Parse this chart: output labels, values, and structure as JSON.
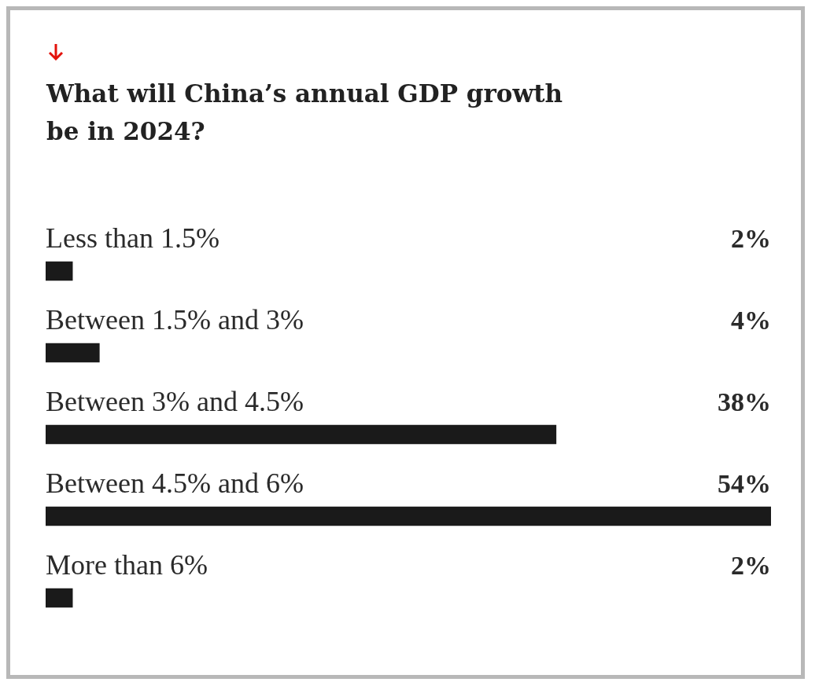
{
  "chart_data": {
    "type": "bar",
    "orientation": "horizontal",
    "title": "What will China’s annual GDP growth be in 2024?",
    "categories": [
      "Less than 1.5%",
      "Between 1.5% and 3%",
      "Between 3% and 4.5%",
      "Between 4.5% and 6%",
      "More than 6%"
    ],
    "values": [
      2,
      4,
      38,
      54,
      2
    ],
    "color": "#1a1a1a",
    "value_labels": [
      "2%",
      "4%",
      "38%",
      "54%",
      "2%"
    ]
  }
}
